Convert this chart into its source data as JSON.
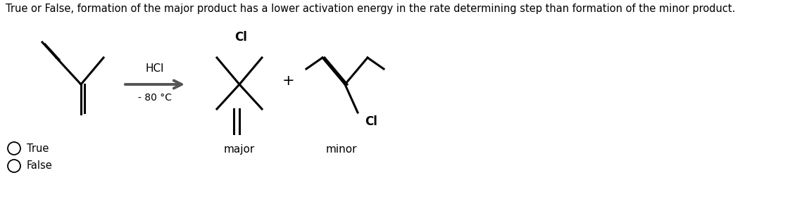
{
  "title": "True or False, formation of the major product has a lower activation energy in the rate determining step than formation of the minor product.",
  "title_fontsize": 10.5,
  "bg_color": "#ffffff",
  "text_color": "#000000",
  "option1": "True",
  "option2": "False",
  "hcl_label": "HCl",
  "temp_label": "- 80 °C",
  "major_label": "major",
  "minor_label": "minor",
  "cl_label": "Cl",
  "plus_label": "+"
}
